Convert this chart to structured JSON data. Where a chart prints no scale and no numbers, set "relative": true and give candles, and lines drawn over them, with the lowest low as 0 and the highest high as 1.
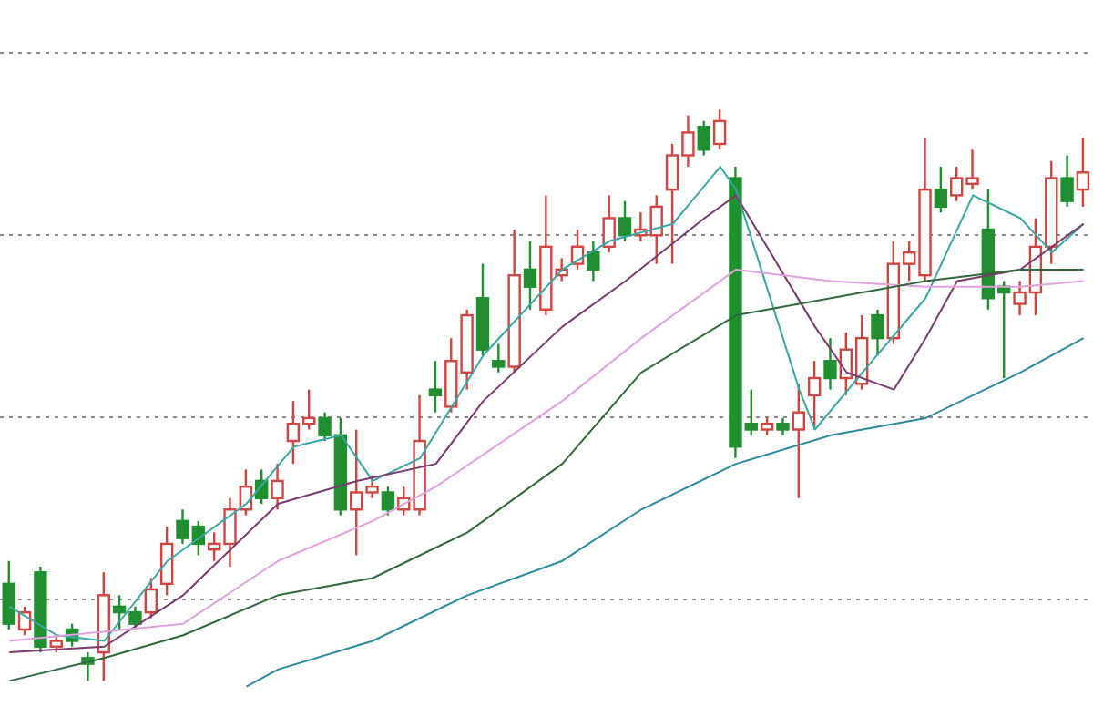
{
  "chart_data": {
    "type": "candlestick",
    "relative": true,
    "grid": "y",
    "categories": [
      null,
      null,
      null,
      null,
      null,
      null,
      null,
      null,
      null,
      null,
      null,
      null,
      null,
      null,
      null,
      null,
      null,
      null,
      null,
      null,
      null,
      null,
      null,
      null,
      null,
      null,
      null,
      null,
      null,
      null,
      null,
      null,
      null,
      null,
      null,
      null,
      null,
      null,
      null,
      null,
      null,
      null,
      null,
      null,
      null,
      null,
      null,
      null,
      null,
      null,
      null,
      null,
      null,
      null,
      null,
      null,
      null,
      null,
      null,
      null,
      null,
      null,
      null,
      null,
      null,
      null,
      null,
      null,
      null
    ],
    "ohlc": [
      [
        0.17,
        0.21,
        0.09,
        0.1
      ],
      [
        0.09,
        0.13,
        0.08,
        0.12
      ],
      [
        0.19,
        0.2,
        0.05,
        0.06
      ],
      [
        0.06,
        0.08,
        0.05,
        0.07
      ],
      [
        0.09,
        0.1,
        0.06,
        0.07
      ],
      [
        0.04,
        0.05,
        0,
        0.03
      ],
      [
        0.05,
        0.19,
        0,
        0.15
      ],
      [
        0.13,
        0.15,
        0.09,
        0.12
      ],
      [
        0.12,
        0.13,
        0.09,
        0.1
      ],
      [
        0.12,
        0.18,
        0.11,
        0.16
      ],
      [
        0.17,
        0.27,
        0.15,
        0.24
      ],
      [
        0.28,
        0.3,
        0.24,
        0.25
      ],
      [
        0.27,
        0.28,
        0.22,
        0.24
      ],
      [
        0.23,
        0.26,
        0.21,
        0.24
      ],
      [
        0.24,
        0.32,
        0.2,
        0.3
      ],
      [
        0.3,
        0.37,
        0.29,
        0.34
      ],
      [
        0.35,
        0.37,
        0.31,
        0.32
      ],
      [
        0.32,
        0.38,
        0.3,
        0.35
      ],
      [
        0.42,
        0.49,
        0.38,
        0.45
      ],
      [
        0.45,
        0.51,
        0.44,
        0.46
      ],
      [
        0.46,
        0.47,
        0.42,
        0.43
      ],
      [
        0.43,
        0.46,
        0.29,
        0.3
      ],
      [
        0.3,
        0.44,
        0.22,
        0.33
      ],
      [
        0.33,
        0.36,
        0.32,
        0.34
      ],
      [
        0.33,
        0.34,
        0.29,
        0.3
      ],
      [
        0.3,
        0.34,
        0.29,
        0.32
      ],
      [
        0.3,
        0.5,
        0.29,
        0.42
      ],
      [
        0.51,
        0.56,
        0.47,
        0.5
      ],
      [
        0.48,
        0.6,
        0.47,
        0.56
      ],
      [
        0.54,
        0.65,
        0.51,
        0.64
      ],
      [
        0.67,
        0.73,
        0.57,
        0.58
      ],
      [
        0.56,
        0.59,
        0.54,
        0.55
      ],
      [
        0.55,
        0.79,
        0.54,
        0.71
      ],
      [
        0.72,
        0.77,
        0.65,
        0.69
      ],
      [
        0.65,
        0.85,
        0.64,
        0.76
      ],
      [
        0.71,
        0.74,
        0.7,
        0.72
      ],
      [
        0.73,
        0.79,
        0.72,
        0.76
      ],
      [
        0.75,
        0.77,
        0.7,
        0.72
      ],
      [
        0.76,
        0.85,
        0.75,
        0.81
      ],
      [
        0.81,
        0.84,
        0.77,
        0.78
      ],
      [
        0.78,
        0.82,
        0.77,
        0.79
      ],
      [
        0.78,
        0.85,
        0.73,
        0.83
      ],
      [
        0.86,
        0.94,
        0.73,
        0.92
      ],
      [
        0.92,
        0.99,
        0.9,
        0.96
      ],
      [
        0.97,
        0.98,
        0.92,
        0.93
      ],
      [
        0.94,
        1,
        0.93,
        0.98
      ],
      [
        0.88,
        0.9,
        0.39,
        0.41
      ],
      [
        0.45,
        0.51,
        0.43,
        0.44
      ],
      [
        0.44,
        0.46,
        0.43,
        0.45
      ],
      [
        0.45,
        0.46,
        0.43,
        0.44
      ],
      [
        0.44,
        0.52,
        0.32,
        0.47
      ],
      [
        0.5,
        0.56,
        0.44,
        0.53
      ],
      [
        0.56,
        0.6,
        0.51,
        0.53
      ],
      [
        0.53,
        0.61,
        0.5,
        0.58
      ],
      [
        0.52,
        0.64,
        0.51,
        0.6
      ],
      [
        0.64,
        0.65,
        0.57,
        0.6
      ],
      [
        0.6,
        0.77,
        0.59,
        0.73
      ],
      [
        0.73,
        0.77,
        0.7,
        0.75
      ],
      [
        0.71,
        0.95,
        0.7,
        0.86
      ],
      [
        0.86,
        0.9,
        0.82,
        0.83
      ],
      [
        0.85,
        0.9,
        0.84,
        0.88
      ],
      [
        0.87,
        0.93,
        0.86,
        0.88
      ],
      [
        0.79,
        0.86,
        0.65,
        0.67
      ],
      [
        0.69,
        0.7,
        0.53,
        0.68
      ],
      [
        0.66,
        0.7,
        0.64,
        0.68
      ],
      [
        0.68,
        0.81,
        0.64,
        0.76
      ],
      [
        0.76,
        0.91,
        0.73,
        0.88
      ],
      [
        0.88,
        0.92,
        0.83,
        0.84
      ],
      [
        0.86,
        0.95,
        0.83,
        0.89
      ]
    ],
    "series": [
      {
        "type": "line",
        "color": "#3aa6a6",
        "values": [
          0.13,
          null,
          null,
          0.08,
          null,
          null,
          0.07,
          null,
          null,
          null,
          0.21,
          null,
          null,
          null,
          null,
          0.31,
          null,
          null,
          0.41,
          null,
          null,
          0.43,
          null,
          0.35,
          null,
          null,
          0.39,
          null,
          null,
          null,
          0.57,
          null,
          null,
          null,
          null,
          0.72,
          null,
          null,
          0.77,
          null,
          null,
          null,
          0.8,
          null,
          null,
          0.9,
          0.86,
          null,
          null,
          null,
          0.51,
          0.44,
          null,
          null,
          0.54,
          null,
          null,
          null,
          0.67,
          null,
          null,
          0.85,
          null,
          null,
          0.81,
          null,
          0.75,
          null,
          0.8
        ]
      },
      {
        "type": "line",
        "color": "#7a3a6e",
        "values": [
          0.05,
          null,
          null,
          null,
          null,
          null,
          0.06,
          null,
          null,
          null,
          null,
          0.15,
          null,
          null,
          null,
          null,
          null,
          0.31,
          null,
          null,
          null,
          null,
          0.35,
          null,
          null,
          null,
          null,
          0.38,
          null,
          null,
          0.49,
          null,
          null,
          null,
          null,
          0.62,
          null,
          null,
          null,
          0.7,
          null,
          null,
          null,
          null,
          0.81,
          null,
          0.85,
          null,
          null,
          null,
          null,
          0.62,
          null,
          0.54,
          null,
          null,
          0.51,
          null,
          0.6,
          null,
          0.7,
          null,
          null,
          null,
          0.72,
          null,
          null,
          0.78,
          0.8
        ]
      },
      {
        "type": "line",
        "color": "#e2a0e0",
        "values": [
          0.07,
          null,
          null,
          null,
          null,
          null,
          null,
          null,
          null,
          null,
          null,
          0.1,
          null,
          null,
          null,
          null,
          null,
          0.21,
          null,
          null,
          null,
          null,
          null,
          0.28,
          null,
          null,
          null,
          0.34,
          null,
          null,
          null,
          null,
          null,
          null,
          null,
          0.49,
          null,
          null,
          null,
          null,
          0.6,
          null,
          null,
          null,
          null,
          null,
          0.72,
          null,
          null,
          null,
          null,
          null,
          0.7,
          null,
          null,
          null,
          null,
          null,
          0.69,
          null,
          null,
          null,
          null,
          null,
          0.69,
          null,
          null,
          null,
          0.7
        ]
      },
      {
        "type": "line",
        "color": "#2f6a3a",
        "values": [
          0,
          null,
          null,
          null,
          null,
          null,
          0.04,
          null,
          null,
          null,
          null,
          0.08,
          null,
          null,
          null,
          null,
          null,
          0.15,
          null,
          null,
          null,
          null,
          null,
          0.18,
          null,
          null,
          null,
          null,
          null,
          0.26,
          null,
          null,
          null,
          null,
          null,
          0.38,
          null,
          null,
          null,
          null,
          0.54,
          null,
          null,
          null,
          null,
          null,
          0.64,
          null,
          null,
          null,
          null,
          null,
          0.67,
          null,
          null,
          null,
          null,
          null,
          0.7,
          null,
          null,
          null,
          null,
          null,
          0.72,
          null,
          null,
          null,
          0.72
        ]
      },
      {
        "type": "line",
        "color": "#2a8aa0",
        "values": [
          null,
          null,
          null,
          null,
          null,
          null,
          null,
          null,
          null,
          null,
          null,
          null,
          null,
          null,
          null,
          -0.01,
          null,
          0.02,
          null,
          null,
          null,
          null,
          null,
          0.07,
          null,
          null,
          null,
          null,
          null,
          0.15,
          null,
          null,
          null,
          null,
          null,
          0.21,
          null,
          null,
          null,
          null,
          0.3,
          null,
          null,
          null,
          null,
          null,
          0.38,
          null,
          null,
          null,
          null,
          null,
          0.43,
          null,
          null,
          null,
          null,
          null,
          0.46,
          null,
          null,
          null,
          null,
          null,
          0.54,
          null,
          null,
          null,
          0.6
        ]
      }
    ]
  }
}
